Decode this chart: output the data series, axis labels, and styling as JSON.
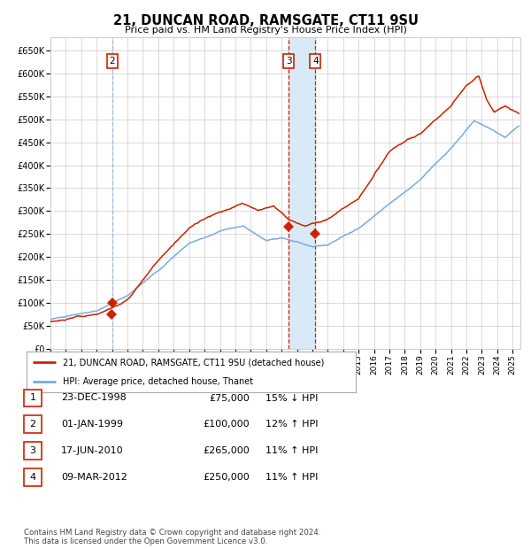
{
  "title": "21, DUNCAN ROAD, RAMSGATE, CT11 9SU",
  "subtitle": "Price paid vs. HM Land Registry's House Price Index (HPI)",
  "ylim": [
    0,
    680000
  ],
  "yticks": [
    0,
    50000,
    100000,
    150000,
    200000,
    250000,
    300000,
    350000,
    400000,
    450000,
    500000,
    550000,
    600000,
    650000
  ],
  "ytick_labels": [
    "£0",
    "£50K",
    "£100K",
    "£150K",
    "£200K",
    "£250K",
    "£300K",
    "£350K",
    "£400K",
    "£450K",
    "£500K",
    "£550K",
    "£600K",
    "£650K"
  ],
  "background_color": "#ffffff",
  "grid_color": "#cccccc",
  "hpi_color": "#7aabe0",
  "price_color": "#cc2200",
  "sale_marker_color": "#cc2200",
  "vline_color_blue": "#9ab8d8",
  "vline_color_red": "#cc2200",
  "shade_color": "#d8eaf8",
  "xmin": 1995.0,
  "xmax": 2025.5,
  "legend_entries": [
    {
      "label": "21, DUNCAN ROAD, RAMSGATE, CT11 9SU (detached house)",
      "color": "#cc2200"
    },
    {
      "label": "HPI: Average price, detached house, Thanet",
      "color": "#7aabe0"
    }
  ],
  "table_rows": [
    {
      "num": "1",
      "date": "23-DEC-1998",
      "price": "£75,000",
      "pct": "15% ↓ HPI"
    },
    {
      "num": "2",
      "date": "01-JAN-1999",
      "price": "£100,000",
      "pct": "12% ↑ HPI"
    },
    {
      "num": "3",
      "date": "17-JUN-2010",
      "price": "£265,000",
      "pct": "11% ↑ HPI"
    },
    {
      "num": "4",
      "date": "09-MAR-2012",
      "price": "£250,000",
      "pct": "11% ↑ HPI"
    }
  ],
  "footnote1": "Contains HM Land Registry data © Crown copyright and database right 2024.",
  "footnote2": "This data is licensed under the Open Government Licence v3.0.",
  "transactions": [
    {
      "num": 1,
      "date_x": 1998.975,
      "price": 75000,
      "vline": false,
      "vline_color": "blue"
    },
    {
      "num": 2,
      "date_x": 1999.003,
      "price": 100000,
      "vline": true,
      "vline_color": "blue"
    },
    {
      "num": 3,
      "date_x": 2010.46,
      "price": 265000,
      "vline": true,
      "vline_color": "red"
    },
    {
      "num": 4,
      "date_x": 2012.19,
      "price": 250000,
      "vline": true,
      "vline_color": "red"
    }
  ]
}
